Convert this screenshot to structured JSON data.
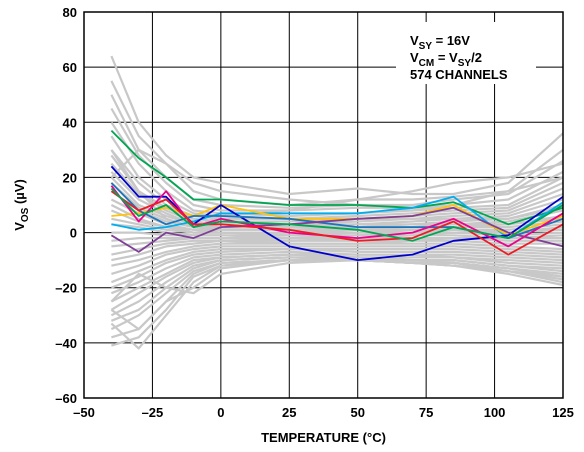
{
  "chart_data": {
    "type": "line",
    "xlabel": "TEMPERATURE (°C)",
    "ylabel": {
      "main": "V",
      "sub": "OS",
      "rest": " (µV)"
    },
    "xlim": [
      -50,
      125
    ],
    "ylim": [
      -60,
      80
    ],
    "x_ticks": [
      -50,
      -25,
      0,
      25,
      50,
      75,
      100,
      125
    ],
    "y_ticks": [
      -60,
      -40,
      -20,
      0,
      20,
      40,
      60,
      80
    ],
    "x_tick_labels": [
      "–50",
      "–25",
      "0",
      "25",
      "50",
      "75",
      "100",
      "125"
    ],
    "y_tick_labels": [
      "–60",
      "–40",
      "–20",
      "0",
      "20",
      "40",
      "60",
      "80"
    ],
    "grid": true,
    "annotations": [
      {
        "parts": [
          {
            "t": "V"
          },
          {
            "t": "SY",
            "sub": true
          },
          {
            "t": " = 16V"
          }
        ]
      },
      {
        "parts": [
          {
            "t": "V"
          },
          {
            "t": "CM",
            "sub": true
          },
          {
            "t": " = V"
          },
          {
            "t": "SY",
            "sub": true
          },
          {
            "t": "/2"
          }
        ]
      },
      {
        "parts": [
          {
            "t": "574 CHANNELS"
          }
        ]
      }
    ],
    "x": [
      -40,
      -30,
      -20,
      -10,
      0,
      25,
      50,
      70,
      85,
      105,
      125
    ],
    "background_color": "#c8c8c8",
    "background_series": [
      [
        64,
        40,
        28,
        20,
        18,
        14,
        16,
        14,
        14,
        18,
        36
      ],
      [
        55,
        35,
        25,
        15,
        12,
        10,
        12,
        12,
        13,
        15,
        30
      ],
      [
        50,
        30,
        20,
        12,
        10,
        9,
        10,
        10,
        12,
        14,
        26
      ],
      [
        45,
        28,
        18,
        10,
        8,
        8,
        9,
        9,
        10,
        12,
        22
      ],
      [
        40,
        25,
        15,
        8,
        7,
        6,
        7,
        8,
        9,
        10,
        20
      ],
      [
        35,
        20,
        12,
        7,
        6,
        5,
        6,
        7,
        8,
        9,
        18
      ],
      [
        30,
        18,
        10,
        6,
        5,
        5,
        5,
        6,
        7,
        8,
        16
      ],
      [
        28,
        15,
        9,
        5,
        4,
        4,
        5,
        5,
        6,
        7,
        14
      ],
      [
        25,
        14,
        8,
        4,
        3,
        3,
        4,
        5,
        5,
        6,
        12
      ],
      [
        22,
        12,
        7,
        3,
        3,
        3,
        3,
        4,
        5,
        5,
        10
      ],
      [
        20,
        10,
        6,
        3,
        2,
        2,
        3,
        3,
        4,
        5,
        9
      ],
      [
        18,
        9,
        5,
        2,
        2,
        2,
        2,
        3,
        3,
        4,
        8
      ],
      [
        15,
        8,
        4,
        2,
        1,
        1,
        2,
        2,
        3,
        3,
        6
      ],
      [
        12,
        7,
        3,
        1,
        1,
        1,
        1,
        2,
        2,
        3,
        5
      ],
      [
        10,
        5,
        2,
        1,
        0,
        0,
        1,
        1,
        2,
        2,
        4
      ],
      [
        8,
        4,
        2,
        0,
        0,
        0,
        0,
        1,
        1,
        1,
        3
      ],
      [
        5,
        3,
        1,
        0,
        0,
        -1,
        0,
        0,
        1,
        0,
        2
      ],
      [
        3,
        2,
        0,
        -1,
        -1,
        -1,
        -1,
        0,
        0,
        0,
        1
      ],
      [
        0,
        0,
        -1,
        -1,
        -1,
        -2,
        -1,
        -1,
        0,
        -1,
        0
      ],
      [
        -3,
        -2,
        -2,
        -2,
        -2,
        -2,
        -2,
        -1,
        -1,
        -2,
        -1
      ],
      [
        -5,
        -4,
        -3,
        -2,
        -2,
        -3,
        -2,
        -2,
        -2,
        -2,
        -2
      ],
      [
        -8,
        -6,
        -4,
        -3,
        -3,
        -3,
        -3,
        -3,
        -2,
        -3,
        -3
      ],
      [
        -10,
        -8,
        -5,
        -4,
        -3,
        -4,
        -4,
        -3,
        -3,
        -4,
        -4
      ],
      [
        -12,
        -10,
        -7,
        -5,
        -4,
        -4,
        -4,
        -4,
        -4,
        -5,
        -6
      ],
      [
        -15,
        -12,
        -8,
        -6,
        -5,
        -5,
        -5,
        -5,
        -5,
        -6,
        -7
      ],
      [
        -18,
        -14,
        -10,
        -7,
        -6,
        -6,
        -6,
        -6,
        -6,
        -7,
        -8
      ],
      [
        -20,
        -16,
        -11,
        -8,
        -7,
        -6,
        -7,
        -7,
        -7,
        -8,
        -9
      ],
      [
        -22,
        -18,
        -13,
        -9,
        -8,
        -7,
        -8,
        -8,
        -8,
        -9,
        -10
      ],
      [
        -25,
        -20,
        -15,
        -10,
        -9,
        -8,
        -8,
        -8,
        -9,
        -10,
        -11
      ],
      [
        -28,
        -22,
        -16,
        -11,
        -9,
        -8,
        -9,
        -9,
        -9,
        -11,
        -12
      ],
      [
        -30,
        -25,
        -18,
        -12,
        -10,
        -9,
        -9,
        -10,
        -10,
        -12,
        -13
      ],
      [
        -32,
        -28,
        -20,
        -13,
        -10,
        -9,
        -10,
        -10,
        -10,
        -12,
        -14
      ],
      [
        -35,
        -30,
        -22,
        -14,
        -11,
        -10,
        -10,
        -11,
        -11,
        -13,
        -15
      ],
      [
        -38,
        -35,
        -25,
        -15,
        -11,
        -10,
        -10,
        -11,
        -11,
        -13,
        -16
      ],
      [
        -41,
        -38,
        -28,
        -16,
        -12,
        -10,
        -10,
        -11,
        -12,
        -14,
        -17
      ],
      [
        -33,
        -42,
        -30,
        -18,
        -12,
        -10,
        -10,
        -11,
        -12,
        -14,
        -18
      ],
      [
        -28,
        -35,
        -25,
        -20,
        -13,
        -10,
        -10,
        -11,
        -12,
        -15,
        -19
      ],
      [
        20,
        30,
        25,
        18,
        15,
        12,
        10,
        8,
        10,
        15,
        20
      ],
      [
        -25,
        -15,
        -20,
        -22,
        -15,
        -11,
        -10,
        -10,
        -11,
        -14,
        -16
      ],
      [
        30,
        15,
        5,
        2,
        6,
        8,
        12,
        15,
        18,
        20,
        25
      ]
    ],
    "series": [
      {
        "color": "#00a651",
        "values": [
          37,
          27,
          20,
          12,
          12,
          10,
          10,
          9,
          11,
          3,
          9
        ]
      },
      {
        "color": "#00aeef",
        "values": [
          3,
          1,
          2,
          4,
          7,
          7,
          7,
          9,
          13,
          -2,
          11
        ]
      },
      {
        "color": "#ffc20e",
        "values": [
          6,
          7,
          9,
          6,
          10,
          5,
          5,
          6,
          10,
          -1,
          6
        ]
      },
      {
        "color": "#0000cc",
        "values": [
          24,
          13,
          13,
          3,
          10,
          -5,
          -10,
          -8,
          -3,
          -1,
          13
        ]
      },
      {
        "color": "#1b75bc",
        "values": [
          18,
          8,
          3,
          6,
          6,
          5,
          2,
          2,
          2,
          -2,
          5
        ]
      },
      {
        "color": "#7f3f98",
        "values": [
          -1,
          -7,
          0,
          -2,
          2,
          3,
          5,
          6,
          9,
          0,
          -5
        ]
      },
      {
        "color": "#ec008c",
        "values": [
          17,
          4,
          15,
          2,
          5,
          0,
          -2,
          0,
          5,
          -5,
          7
        ]
      },
      {
        "color": "#ed1c24",
        "values": [
          15,
          8,
          12,
          3,
          3,
          1,
          -3,
          -2,
          4,
          -8,
          3
        ]
      },
      {
        "color": "#00a651",
        "values": [
          16,
          6,
          10,
          2,
          4,
          3,
          1,
          -3,
          2,
          -2,
          10
        ]
      }
    ]
  }
}
